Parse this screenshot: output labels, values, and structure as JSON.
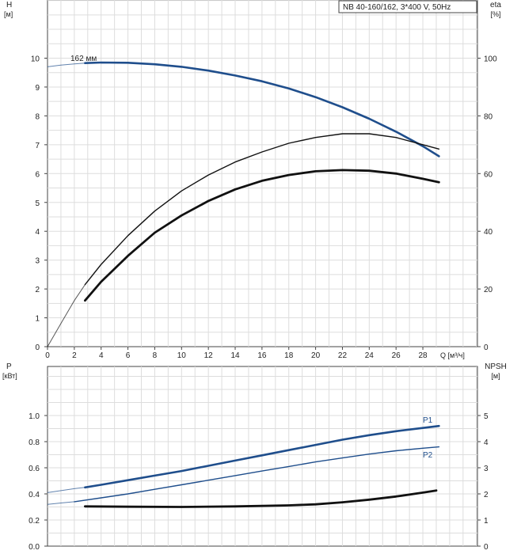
{
  "chart_data": [
    {
      "type": "line",
      "title": "NB 40-160/162, 3*400 V, 50Hz",
      "ylabel": "H",
      "ylabel_unit": "[м]",
      "y2label": "eta",
      "y2label_unit": "[%]",
      "xlabel": "Q [м³/ч]",
      "xlim": [
        0,
        32
      ],
      "ylim": [
        0,
        11
      ],
      "y2lim": [
        0,
        110
      ],
      "x_ticks": [
        0,
        2,
        4,
        6,
        8,
        10,
        12,
        14,
        16,
        18,
        20,
        22,
        24,
        26,
        28
      ],
      "y_ticks": [
        0,
        1,
        2,
        3,
        4,
        5,
        6,
        7,
        8,
        9,
        10
      ],
      "y2_ticks": [
        0,
        20,
        40,
        60,
        80,
        100
      ],
      "grid": true,
      "series": [
        {
          "name": "162 мм",
          "axis": "left",
          "color": "#1f4e8c",
          "extrapolated": [
            [
              0,
              9.7
            ],
            [
              1,
              9.76
            ],
            [
              2,
              9.8
            ],
            [
              2.8,
              9.83
            ]
          ],
          "points": [
            [
              2.8,
              9.83
            ],
            [
              4,
              9.85
            ],
            [
              6,
              9.84
            ],
            [
              8,
              9.79
            ],
            [
              10,
              9.7
            ],
            [
              12,
              9.57
            ],
            [
              14,
              9.4
            ],
            [
              16,
              9.2
            ],
            [
              18,
              8.95
            ],
            [
              20,
              8.65
            ],
            [
              22,
              8.3
            ],
            [
              24,
              7.9
            ],
            [
              26,
              7.45
            ],
            [
              28,
              6.95
            ],
            [
              29.2,
              6.6
            ]
          ]
        },
        {
          "name": "",
          "axis": "right",
          "color": "#111111",
          "extrapolated": [
            [
              0,
              0
            ],
            [
              1,
              8
            ],
            [
              2,
              16
            ],
            [
              2.8,
              21.5
            ]
          ],
          "points": [
            [
              2.8,
              21.5
            ],
            [
              4,
              28.5
            ],
            [
              6,
              38.5
            ],
            [
              8,
              47
            ],
            [
              10,
              54
            ],
            [
              12,
              59.5
            ],
            [
              14,
              64
            ],
            [
              16,
              67.5
            ],
            [
              18,
              70.5
            ],
            [
              20,
              72.5
            ],
            [
              22,
              73.8
            ],
            [
              24,
              73.8
            ],
            [
              26,
              72.5
            ],
            [
              28,
              70
            ],
            [
              29.2,
              68.5
            ]
          ]
        },
        {
          "name": "",
          "axis": "right",
          "color": "#111111",
          "bold": true,
          "points": [
            [
              2.8,
              16
            ],
            [
              4,
              22.5
            ],
            [
              6,
              31.5
            ],
            [
              8,
              39.5
            ],
            [
              10,
              45.5
            ],
            [
              12,
              50.5
            ],
            [
              14,
              54.5
            ],
            [
              16,
              57.5
            ],
            [
              18,
              59.5
            ],
            [
              20,
              60.8
            ],
            [
              22,
              61.2
            ],
            [
              24,
              61
            ],
            [
              26,
              60
            ],
            [
              28,
              58.2
            ],
            [
              29.2,
              57
            ]
          ]
        }
      ]
    },
    {
      "type": "line",
      "ylabel": "P",
      "ylabel_unit": "[кВт]",
      "y2label": "NPSH",
      "y2label_unit": "[м]",
      "xlim": [
        0,
        32
      ],
      "ylim": [
        0,
        1.2
      ],
      "y2lim": [
        0,
        6
      ],
      "y_ticks": [
        0.0,
        0.2,
        0.4,
        0.6,
        0.8,
        1.0
      ],
      "y_tick_labels": [
        "0.0",
        "0.2",
        "0.4",
        "0.6",
        "0.8",
        "1.0"
      ],
      "y2_ticks": [
        0,
        1,
        2,
        3,
        4,
        5
      ],
      "grid": true,
      "series": [
        {
          "name": "P1",
          "axis": "left",
          "color": "#1f4e8c",
          "extrapolated": [
            [
              0,
              0.41
            ],
            [
              1,
              0.425
            ],
            [
              2,
              0.44
            ],
            [
              2.8,
              0.45
            ]
          ],
          "points": [
            [
              2.8,
              0.45
            ],
            [
              4,
              0.47
            ],
            [
              6,
              0.505
            ],
            [
              8,
              0.54
            ],
            [
              10,
              0.575
            ],
            [
              12,
              0.615
            ],
            [
              14,
              0.655
            ],
            [
              16,
              0.695
            ],
            [
              18,
              0.735
            ],
            [
              20,
              0.775
            ],
            [
              22,
              0.815
            ],
            [
              24,
              0.85
            ],
            [
              26,
              0.88
            ],
            [
              28,
              0.905
            ],
            [
              29.2,
              0.92
            ]
          ]
        },
        {
          "name": "P2",
          "axis": "left",
          "color": "#1f4e8c",
          "thin": true,
          "extrapolated": [
            [
              0,
              0.32
            ],
            [
              1,
              0.33
            ],
            [
              2,
              0.34
            ]
          ],
          "points": [
            [
              2,
              0.34
            ],
            [
              4,
              0.37
            ],
            [
              6,
              0.4
            ],
            [
              8,
              0.435
            ],
            [
              10,
              0.47
            ],
            [
              12,
              0.505
            ],
            [
              14,
              0.54
            ],
            [
              16,
              0.575
            ],
            [
              18,
              0.61
            ],
            [
              20,
              0.645
            ],
            [
              22,
              0.675
            ],
            [
              24,
              0.705
            ],
            [
              26,
              0.73
            ],
            [
              28,
              0.75
            ],
            [
              29.2,
              0.76
            ]
          ]
        },
        {
          "name": "",
          "axis": "right",
          "color": "#111111",
          "bold": true,
          "points": [
            [
              2.8,
              1.52
            ],
            [
              6,
              1.51
            ],
            [
              10,
              1.5
            ],
            [
              14,
              1.52
            ],
            [
              18,
              1.56
            ],
            [
              20,
              1.6
            ],
            [
              22,
              1.68
            ],
            [
              24,
              1.78
            ],
            [
              26,
              1.9
            ],
            [
              28,
              2.05
            ],
            [
              29,
              2.13
            ]
          ]
        }
      ]
    }
  ]
}
